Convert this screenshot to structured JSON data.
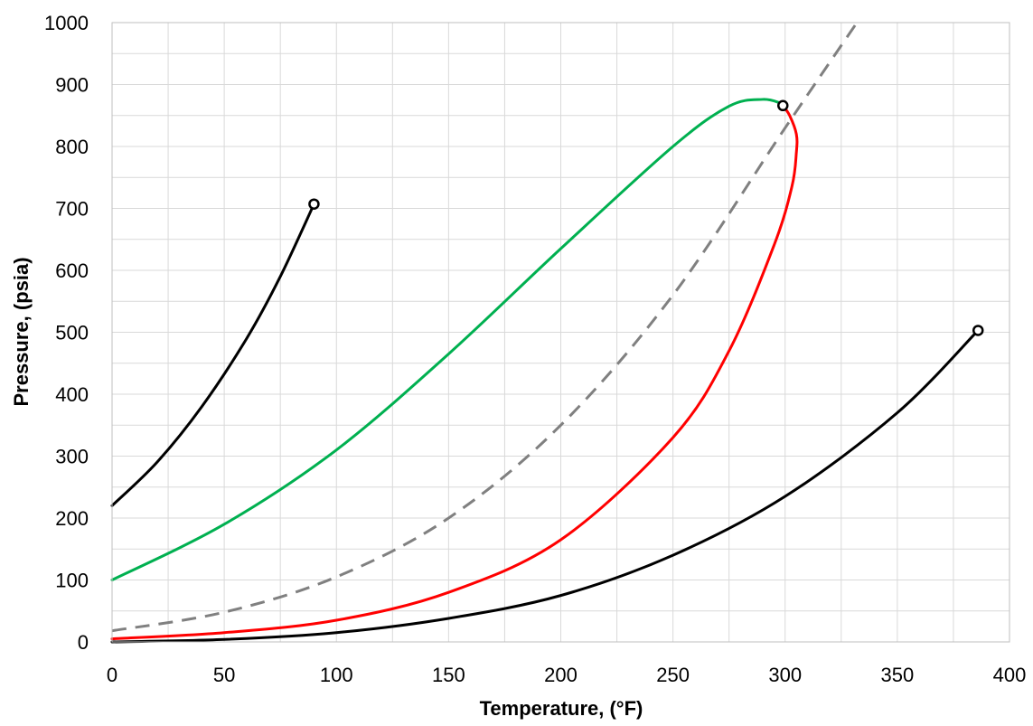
{
  "chart_data": {
    "type": "line",
    "xlabel": "Temperature, (°F)",
    "ylabel": "Pressure, (psia)",
    "xlim": [
      0,
      400
    ],
    "ylim": [
      0,
      1000
    ],
    "x_ticks": [
      "0",
      "50",
      "100",
      "150",
      "200",
      "250",
      "300",
      "350",
      "400"
    ],
    "y_ticks": [
      "0",
      "100",
      "200",
      "300",
      "400",
      "500",
      "600",
      "700",
      "800",
      "900",
      "1000"
    ],
    "grid": true,
    "legend": "none",
    "series": [
      {
        "color": "#000000",
        "style": "solid",
        "points": [
          [
            0,
            220
          ],
          [
            20,
            290
          ],
          [
            40,
            380
          ],
          [
            60,
            490
          ],
          [
            75,
            590
          ],
          [
            90,
            707
          ]
        ],
        "end_marker": [
          90,
          707
        ]
      },
      {
        "color": "#00b050",
        "style": "solid",
        "points": [
          [
            0,
            100
          ],
          [
            50,
            190
          ],
          [
            100,
            310
          ],
          [
            150,
            465
          ],
          [
            200,
            635
          ],
          [
            250,
            800
          ],
          [
            275,
            865
          ],
          [
            290,
            876
          ],
          [
            298,
            870
          ]
        ]
      },
      {
        "color": "#ff0000",
        "style": "solid",
        "points": [
          [
            0,
            5
          ],
          [
            50,
            15
          ],
          [
            100,
            35
          ],
          [
            150,
            80
          ],
          [
            200,
            165
          ],
          [
            250,
            330
          ],
          [
            275,
            470
          ],
          [
            295,
            640
          ],
          [
            303,
            735
          ],
          [
            305,
            790
          ],
          [
            305,
            820
          ],
          [
            302,
            850
          ],
          [
            299,
            866
          ]
        ]
      },
      {
        "color": "#808080",
        "style": "dashed",
        "points": [
          [
            0,
            18
          ],
          [
            50,
            48
          ],
          [
            100,
            105
          ],
          [
            150,
            200
          ],
          [
            200,
            350
          ],
          [
            250,
            560
          ],
          [
            300,
            830
          ],
          [
            332,
            1000
          ]
        ]
      },
      {
        "color": "#000000",
        "style": "solid",
        "points": [
          [
            0,
            0
          ],
          [
            50,
            4
          ],
          [
            100,
            15
          ],
          [
            150,
            38
          ],
          [
            200,
            75
          ],
          [
            250,
            140
          ],
          [
            300,
            235
          ],
          [
            350,
            370
          ],
          [
            386,
            503
          ]
        ],
        "end_marker": [
          386,
          503
        ]
      }
    ],
    "markers": [
      [
        299,
        866
      ]
    ]
  }
}
